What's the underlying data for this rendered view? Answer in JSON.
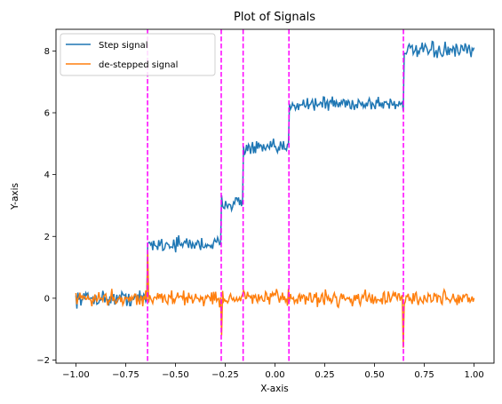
{
  "chart_data": {
    "type": "line",
    "title": "Plot of Signals",
    "xlabel": "X-axis",
    "ylabel": "Y-axis",
    "xlim": [
      -1.1,
      1.1
    ],
    "ylim": [
      -2.1,
      8.7
    ],
    "xticks": [
      -1.0,
      -0.75,
      -0.5,
      -0.25,
      0.0,
      0.25,
      0.5,
      0.75,
      1.0
    ],
    "xtick_labels": [
      "−1.00",
      "−0.75",
      "−0.50",
      "−0.25",
      "0.00",
      "0.25",
      "0.50",
      "0.75",
      "1.00"
    ],
    "yticks": [
      -2,
      0,
      2,
      4,
      6,
      8
    ],
    "ytick_labels": [
      "−2",
      "0",
      "2",
      "4",
      "6",
      "8"
    ],
    "grid": false,
    "legend_position": "top-left",
    "steps": [
      {
        "x_start": -1.0,
        "x_end": -0.64,
        "level": 0.0
      },
      {
        "x_start": -0.64,
        "x_end": -0.27,
        "level": 1.75
      },
      {
        "x_start": -0.27,
        "x_end": -0.16,
        "level": 3.1
      },
      {
        "x_start": -0.16,
        "x_end": 0.07,
        "level": 4.85
      },
      {
        "x_start": 0.07,
        "x_end": 0.645,
        "level": 6.3
      },
      {
        "x_start": 0.645,
        "x_end": 1.0,
        "level": 8.0
      }
    ],
    "vlines": [
      -0.64,
      -0.27,
      -0.16,
      0.07,
      0.645
    ],
    "spikes": [
      {
        "x": -0.64,
        "y": 1.5
      },
      {
        "x": -0.27,
        "y": -1.2
      },
      {
        "x": -0.16,
        "y": 0.25
      },
      {
        "x": 0.07,
        "y": 0.3
      },
      {
        "x": 0.645,
        "y": -1.6
      }
    ],
    "noise_amplitude": 0.12,
    "num_points": 400,
    "series": [
      {
        "name": "Step signal",
        "color": "#1f77b4"
      },
      {
        "name": "de-stepped signal",
        "color": "#ff7f0e"
      }
    ],
    "vline_color": "#ff00ff"
  }
}
